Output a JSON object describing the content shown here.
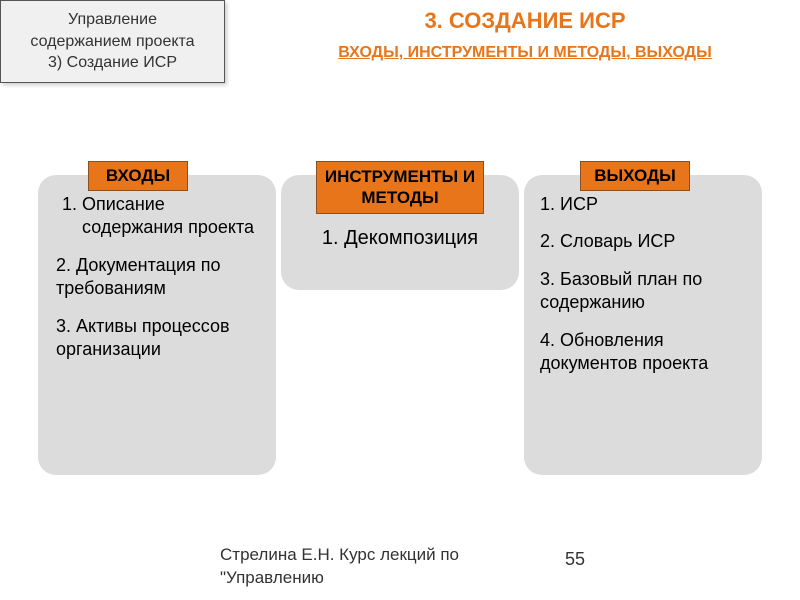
{
  "breadcrumb": {
    "line1": "Управление",
    "line2": "содержанием проекта",
    "line3": "3) Создание ИСР"
  },
  "title": "3. СОЗДАНИЕ ИСР",
  "subtitle": "ВХОДЫ, ИНСТРУМЕНТЫ И МЕТОДЫ, ВЫХОДЫ",
  "colors": {
    "accent": "#e8751a",
    "panel_bg": "#dcdcdc",
    "border": "#555555",
    "text": "#333333"
  },
  "panels": {
    "inputs": {
      "label": "ВХОДЫ",
      "items": [
        "Описание содержания проекта",
        "2. Документация по требованиям",
        "3. Активы процессов организации"
      ]
    },
    "tools": {
      "label": "ИНСТРУМЕНТЫ И МЕТОДЫ",
      "items": [
        "1. Декомпозиция"
      ]
    },
    "outputs": {
      "label": "ВЫХОДЫ",
      "items": [
        "1. ИСР",
        "2. Словарь ИСР",
        "3. Базовый план по содержанию",
        "4. Обновления документов проекта"
      ]
    }
  },
  "footer": "Стрелина Е.Н. Курс лекций по \"Управлению",
  "page_number": "55"
}
